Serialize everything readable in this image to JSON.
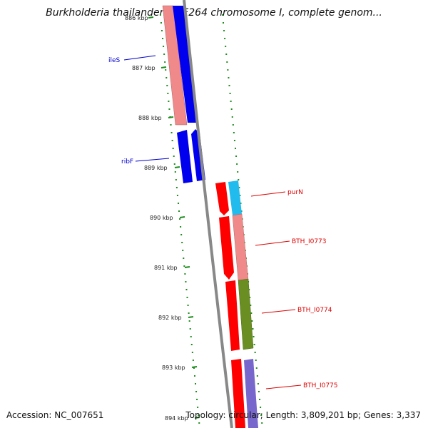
{
  "header": {
    "title": "Burkholderia thailandensis E264 chromosome I, complete genom..."
  },
  "footer": {
    "accession": "Accession: NC_007651",
    "topology": "Topology: circular; Length: 3,809,201 bp; Genes: 3,337"
  },
  "map": {
    "ticks": [
      {
        "label": "886 kbp",
        "kbp": 886
      },
      {
        "label": "887 kbp",
        "kbp": 887
      },
      {
        "label": "888 kbp",
        "kbp": 888
      },
      {
        "label": "889 kbp",
        "kbp": 889
      },
      {
        "label": "890 kbp",
        "kbp": 890
      },
      {
        "label": "891 kbp",
        "kbp": 891
      },
      {
        "label": "892 kbp",
        "kbp": 892
      },
      {
        "label": "893 kbp",
        "kbp": 893
      },
      {
        "label": "894 kbp",
        "kbp": 894
      }
    ],
    "gene_labels": [
      {
        "name": "ileS",
        "strand": "forward",
        "color": "#0000cc"
      },
      {
        "name": "ribF",
        "strand": "forward",
        "color": "#0000cc"
      },
      {
        "name": "purN",
        "strand": "reverse",
        "color": "#dd0000"
      },
      {
        "name": "BTH_I0773",
        "strand": "reverse",
        "color": "#dd0000"
      },
      {
        "name": "BTH_I0774",
        "strand": "reverse",
        "color": "#dd0000"
      },
      {
        "name": "BTH_I0775",
        "strand": "reverse",
        "color": "#dd0000"
      }
    ],
    "colors": {
      "forward_cds": "#0000ee",
      "reverse_cds": "#ff0000",
      "backbone": "#888888",
      "gc_skew_dots": "#1e8c1e",
      "cog_salmon": "#f08a8a",
      "cog_cyan": "#22bbee",
      "cog_olive": "#6b8e23",
      "cog_purple": "#7766cc"
    }
  }
}
